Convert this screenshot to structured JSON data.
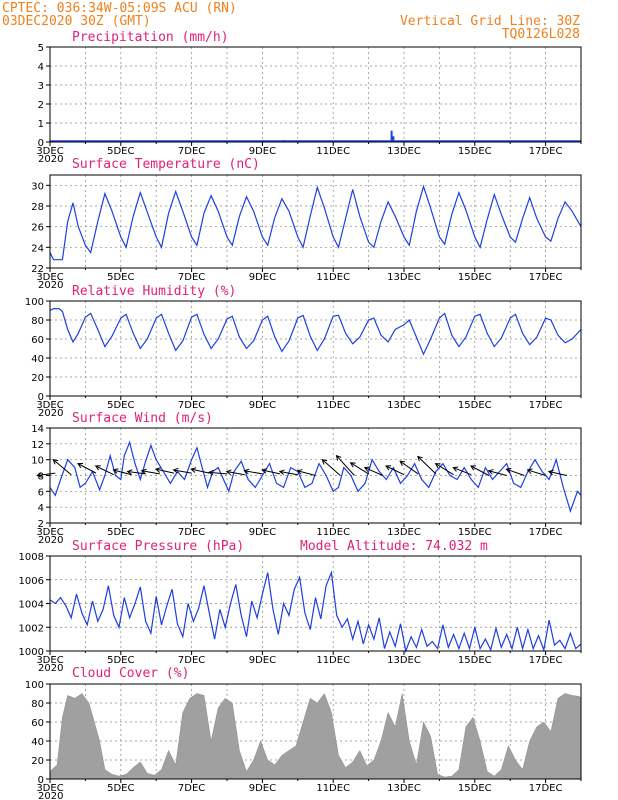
{
  "header": {
    "line1": "CPTEC:   036:34W-05:09S   ACU (RN)",
    "line2": "03DEC2020 30Z (GMT)",
    "grid_note": "Vertical Grid Line: 30Z",
    "code": "TQ0126L028"
  },
  "colors": {
    "header": "#f08020",
    "title": "#e0207a",
    "series": "#1f3fe0",
    "cloud": "#a0a0a0"
  },
  "x_axis": {
    "labels": [
      "3DEC",
      "5DEC",
      "7DEC",
      "9DEC",
      "11DEC",
      "13DEC",
      "15DEC",
      "17DEC"
    ],
    "year_label": "2020"
  },
  "chart_data": [
    {
      "type": "bar",
      "title": "Precipitation (mm/h)",
      "ylim": [
        0,
        5
      ],
      "yticks": [
        0,
        1,
        2,
        3,
        4,
        5
      ],
      "x": [
        6.5,
        9.6,
        12.65,
        12.7
      ],
      "values": [
        0.05,
        0.1,
        0.6,
        0.3
      ]
    },
    {
      "type": "line",
      "title": "Surface Temperature (nC)",
      "ylim": [
        22,
        31
      ],
      "yticks": [
        22,
        24,
        26,
        28,
        30
      ],
      "x": [
        3.0,
        3.1,
        3.25,
        3.35,
        3.5,
        3.65,
        3.8,
        4.0,
        4.15,
        4.35,
        4.55,
        4.75,
        5.0,
        5.15,
        5.35,
        5.55,
        5.75,
        6.0,
        6.15,
        6.35,
        6.55,
        6.75,
        7.0,
        7.15,
        7.35,
        7.55,
        7.75,
        8.0,
        8.15,
        8.35,
        8.55,
        8.75,
        9.0,
        9.15,
        9.35,
        9.55,
        9.75,
        10.0,
        10.15,
        10.35,
        10.55,
        10.75,
        11.0,
        11.15,
        11.35,
        11.55,
        11.75,
        12.0,
        12.15,
        12.35,
        12.55,
        12.75,
        13.0,
        13.15,
        13.35,
        13.55,
        13.75,
        14.0,
        14.15,
        14.35,
        14.55,
        14.75,
        15.0,
        15.15,
        15.35,
        15.55,
        15.75,
        16.0,
        16.15,
        16.35,
        16.55,
        16.75,
        17.0,
        17.15,
        17.35,
        17.55,
        17.75,
        18.0
      ],
      "values": [
        23.5,
        22.8,
        22.8,
        22.8,
        26.5,
        28.3,
        26.0,
        24.2,
        23.5,
        26.5,
        29.2,
        27.5,
        25.0,
        24.0,
        27.0,
        29.3,
        27.4,
        25.0,
        24.0,
        27.3,
        29.4,
        27.5,
        25.0,
        24.2,
        27.3,
        29.0,
        27.5,
        25.0,
        24.2,
        27.0,
        28.9,
        27.5,
        25.0,
        24.2,
        26.9,
        28.7,
        27.5,
        25.0,
        24.0,
        27.0,
        29.8,
        27.8,
        25.0,
        24.0,
        26.8,
        29.6,
        27.0,
        24.5,
        24.0,
        26.5,
        28.4,
        27.0,
        25.0,
        24.2,
        27.5,
        29.9,
        27.8,
        25.0,
        24.3,
        27.2,
        29.3,
        27.6,
        25.0,
        24.0,
        26.7,
        29.1,
        27.2,
        25.0,
        24.5,
        26.8,
        28.8,
        26.8,
        25.0,
        24.6,
        26.8,
        28.4,
        27.5,
        26.0
      ]
    },
    {
      "type": "line",
      "title": "Relative Humidity (%)",
      "ylim": [
        0,
        100
      ],
      "yticks": [
        0,
        20,
        40,
        60,
        80,
        100
      ],
      "x": [
        3.0,
        3.1,
        3.25,
        3.35,
        3.5,
        3.65,
        3.8,
        4.0,
        4.15,
        4.35,
        4.55,
        4.75,
        5.0,
        5.15,
        5.35,
        5.55,
        5.75,
        6.0,
        6.15,
        6.35,
        6.55,
        6.75,
        7.0,
        7.15,
        7.35,
        7.55,
        7.75,
        8.0,
        8.15,
        8.35,
        8.55,
        8.75,
        9.0,
        9.15,
        9.35,
        9.55,
        9.75,
        10.0,
        10.15,
        10.35,
        10.55,
        10.75,
        11.0,
        11.15,
        11.35,
        11.55,
        11.75,
        12.0,
        12.15,
        12.35,
        12.55,
        12.75,
        13.0,
        13.15,
        13.35,
        13.55,
        13.75,
        14.0,
        14.15,
        14.35,
        14.55,
        14.75,
        15.0,
        15.15,
        15.35,
        15.55,
        15.75,
        16.0,
        16.15,
        16.35,
        16.55,
        16.75,
        17.0,
        17.15,
        17.35,
        17.55,
        17.75,
        18.0
      ],
      "values": [
        90,
        92,
        92,
        89,
        70,
        57,
        66,
        83,
        87,
        70,
        52,
        63,
        82,
        86,
        66,
        50,
        60,
        82,
        86,
        66,
        48,
        58,
        83,
        86,
        65,
        50,
        60,
        81,
        84,
        62,
        50,
        58,
        80,
        84,
        62,
        47,
        58,
        82,
        85,
        63,
        48,
        60,
        84,
        85,
        66,
        55,
        62,
        80,
        82,
        64,
        57,
        70,
        75,
        80,
        62,
        44,
        60,
        82,
        87,
        64,
        52,
        62,
        84,
        86,
        66,
        52,
        61,
        82,
        86,
        66,
        54,
        62,
        82,
        80,
        64,
        56,
        60,
        70
      ]
    },
    {
      "type": "line",
      "title": "Surface Wind (m/s)",
      "ylim": [
        2,
        14
      ],
      "yticks": [
        2,
        4,
        6,
        8,
        10,
        12,
        14
      ],
      "x": [
        3.0,
        3.15,
        3.3,
        3.5,
        3.7,
        3.85,
        4.0,
        4.2,
        4.4,
        4.55,
        4.7,
        4.85,
        5.0,
        5.1,
        5.25,
        5.4,
        5.55,
        5.7,
        5.85,
        6.0,
        6.2,
        6.4,
        6.6,
        6.8,
        7.0,
        7.15,
        7.3,
        7.45,
        7.6,
        7.75,
        7.9,
        8.05,
        8.2,
        8.4,
        8.6,
        8.8,
        9.0,
        9.2,
        9.4,
        9.6,
        9.8,
        10.0,
        10.2,
        10.4,
        10.6,
        10.8,
        11.0,
        11.15,
        11.3,
        11.5,
        11.7,
        11.9,
        12.1,
        12.3,
        12.5,
        12.7,
        12.9,
        13.1,
        13.3,
        13.5,
        13.7,
        13.9,
        14.1,
        14.3,
        14.5,
        14.7,
        14.9,
        15.1,
        15.3,
        15.5,
        15.7,
        15.9,
        16.1,
        16.3,
        16.5,
        16.7,
        16.9,
        17.1,
        17.3,
        17.5,
        17.7,
        17.9,
        18.0
      ],
      "values": [
        6.5,
        5.5,
        7.5,
        10.0,
        9.0,
        6.5,
        7.0,
        8.5,
        6.2,
        8.0,
        10.5,
        8.0,
        7.5,
        10.5,
        12.2,
        9.5,
        7.5,
        9.8,
        11.8,
        10.0,
        8.5,
        7.0,
        8.5,
        7.5,
        10.0,
        11.5,
        9.0,
        6.5,
        8.5,
        9.0,
        7.5,
        6.0,
        8.5,
        9.8,
        7.5,
        6.5,
        8.0,
        9.5,
        7.0,
        6.5,
        9.0,
        8.5,
        6.5,
        7.0,
        9.5,
        8.0,
        6.0,
        6.5,
        9.0,
        8.0,
        6.0,
        7.0,
        10.0,
        8.5,
        7.5,
        9.0,
        7.0,
        8.0,
        9.5,
        7.5,
        6.5,
        8.5,
        9.5,
        8.0,
        7.5,
        9.0,
        7.5,
        6.5,
        9.0,
        7.5,
        8.5,
        9.5,
        7.0,
        6.5,
        8.5,
        10.0,
        8.5,
        7.5,
        10.0,
        6.5,
        3.5,
        6.0,
        5.5
      ],
      "arrows": {
        "x": [
          3.15,
          3.6,
          4.3,
          4.8,
          5.3,
          5.7,
          6.1,
          6.5,
          7.0,
          7.5,
          8.0,
          8.5,
          9.0,
          9.5,
          10.0,
          10.5,
          11.2,
          11.6,
          12.0,
          12.4,
          13.0,
          13.4,
          13.9,
          14.4,
          14.9,
          15.4,
          15.9,
          16.4,
          17.0,
          17.6
        ],
        "from_y": [
          8.3,
          8.1,
          8.3,
          8.1,
          8.1,
          8.2,
          8.2,
          8.3,
          8.3,
          8.3,
          8.2,
          8.1,
          8.2,
          8.2,
          8.1,
          8.0,
          8.0,
          8.0,
          8.2,
          8.0,
          8.1,
          8.2,
          8.2,
          8.1,
          8.1,
          8.0,
          8.0,
          8.0,
          8.0,
          8.0
        ],
        "to_y": [
          8.0,
          10.0,
          9.5,
          9.2,
          8.7,
          8.5,
          8.6,
          8.8,
          8.7,
          8.8,
          8.4,
          8.5,
          8.6,
          8.7,
          8.5,
          8.6,
          10.0,
          10.5,
          9.6,
          9.0,
          9.2,
          9.8,
          10.4,
          9.5,
          9.0,
          9.2,
          8.6,
          8.8,
          8.7,
          8.5
        ]
      }
    },
    {
      "type": "line",
      "title": "Surface Pressure (hPa)",
      "annotation": "Model Altitude: 74.032 m",
      "ylim": [
        1000,
        1008
      ],
      "yticks": [
        1000,
        1002,
        1004,
        1006,
        1008
      ],
      "x": [
        3.0,
        3.15,
        3.3,
        3.45,
        3.6,
        3.75,
        3.9,
        4.05,
        4.2,
        4.35,
        4.5,
        4.65,
        4.8,
        4.95,
        5.1,
        5.25,
        5.4,
        5.55,
        5.7,
        5.85,
        6.0,
        6.15,
        6.3,
        6.45,
        6.6,
        6.75,
        6.9,
        7.05,
        7.2,
        7.35,
        7.5,
        7.65,
        7.8,
        7.95,
        8.1,
        8.25,
        8.4,
        8.55,
        8.7,
        8.85,
        9.0,
        9.15,
        9.3,
        9.45,
        9.6,
        9.75,
        9.9,
        10.05,
        10.2,
        10.35,
        10.5,
        10.65,
        10.8,
        10.95,
        11.1,
        11.25,
        11.4,
        11.55,
        11.7,
        11.85,
        12.0,
        12.15,
        12.3,
        12.45,
        12.6,
        12.75,
        12.9,
        13.05,
        13.2,
        13.35,
        13.5,
        13.65,
        13.8,
        13.95,
        14.1,
        14.25,
        14.4,
        14.55,
        14.7,
        14.85,
        15.0,
        15.15,
        15.3,
        15.45,
        15.6,
        15.75,
        15.9,
        16.05,
        16.2,
        16.35,
        16.5,
        16.65,
        16.8,
        16.95,
        17.1,
        17.25,
        17.4,
        17.55,
        17.7,
        17.85,
        18.0
      ],
      "values": [
        1004.3,
        1004.0,
        1004.5,
        1003.8,
        1002.8,
        1004.8,
        1003.2,
        1002.2,
        1004.2,
        1002.5,
        1003.5,
        1005.5,
        1003.0,
        1002.0,
        1004.5,
        1002.8,
        1004.0,
        1005.4,
        1002.5,
        1001.5,
        1004.6,
        1002.2,
        1003.8,
        1005.2,
        1002.3,
        1001.2,
        1004.0,
        1002.5,
        1003.6,
        1005.5,
        1003.2,
        1001.0,
        1003.5,
        1002.0,
        1004.0,
        1005.6,
        1003.0,
        1001.2,
        1004.2,
        1002.8,
        1004.8,
        1006.6,
        1003.5,
        1001.4,
        1004.0,
        1003.0,
        1005.2,
        1006.2,
        1003.2,
        1001.8,
        1004.5,
        1002.7,
        1005.5,
        1006.6,
        1003.0,
        1002.0,
        1002.7,
        1001.0,
        1002.5,
        1000.6,
        1002.2,
        1001.0,
        1002.8,
        1000.2,
        1001.6,
        1000.4,
        1002.3,
        1000.0,
        1001.2,
        1000.3,
        1001.8,
        1000.4,
        1000.8,
        1000.2,
        1002.2,
        1000.3,
        1001.4,
        1000.2,
        1001.5,
        1000.2,
        1002.0,
        1000.2,
        1001.0,
        1000.1,
        1001.9,
        1000.3,
        1001.4,
        1000.2,
        1002.0,
        1000.2,
        1001.8,
        1000.2,
        1001.3,
        1000.1,
        1002.6,
        1000.5,
        1000.9,
        1000.2,
        1001.5,
        1000.2,
        1000.6
      ]
    },
    {
      "type": "area",
      "title": "Cloud Cover (%)",
      "ylim": [
        0,
        100
      ],
      "yticks": [
        0,
        20,
        40,
        60,
        80,
        100
      ],
      "x": [
        3.0,
        3.2,
        3.35,
        3.5,
        3.7,
        3.9,
        4.1,
        4.25,
        4.4,
        4.55,
        4.75,
        4.95,
        5.15,
        5.35,
        5.55,
        5.75,
        5.95,
        6.15,
        6.35,
        6.55,
        6.75,
        6.95,
        7.15,
        7.35,
        7.55,
        7.75,
        7.95,
        8.15,
        8.35,
        8.55,
        8.75,
        8.95,
        9.15,
        9.35,
        9.55,
        9.75,
        9.95,
        10.15,
        10.35,
        10.55,
        10.75,
        10.95,
        11.15,
        11.35,
        11.55,
        11.75,
        11.95,
        12.15,
        12.35,
        12.55,
        12.75,
        12.95,
        13.15,
        13.35,
        13.55,
        13.75,
        13.95,
        14.15,
        14.35,
        14.55,
        14.75,
        14.95,
        15.15,
        15.35,
        15.55,
        15.75,
        15.95,
        16.15,
        16.35,
        16.55,
        16.75,
        16.95,
        17.15,
        17.35,
        17.55,
        17.75,
        17.95,
        18.0
      ],
      "values": [
        8,
        15,
        65,
        88,
        85,
        90,
        80,
        60,
        40,
        10,
        5,
        3,
        5,
        12,
        18,
        6,
        4,
        10,
        30,
        15,
        70,
        85,
        90,
        88,
        40,
        75,
        85,
        80,
        30,
        8,
        20,
        40,
        20,
        15,
        25,
        30,
        35,
        60,
        85,
        80,
        90,
        70,
        25,
        12,
        18,
        30,
        14,
        20,
        40,
        70,
        55,
        90,
        40,
        15,
        60,
        45,
        5,
        2,
        3,
        10,
        55,
        65,
        40,
        8,
        3,
        10,
        35,
        20,
        10,
        40,
        55,
        60,
        50,
        85,
        90,
        88,
        87,
        85
      ]
    }
  ]
}
